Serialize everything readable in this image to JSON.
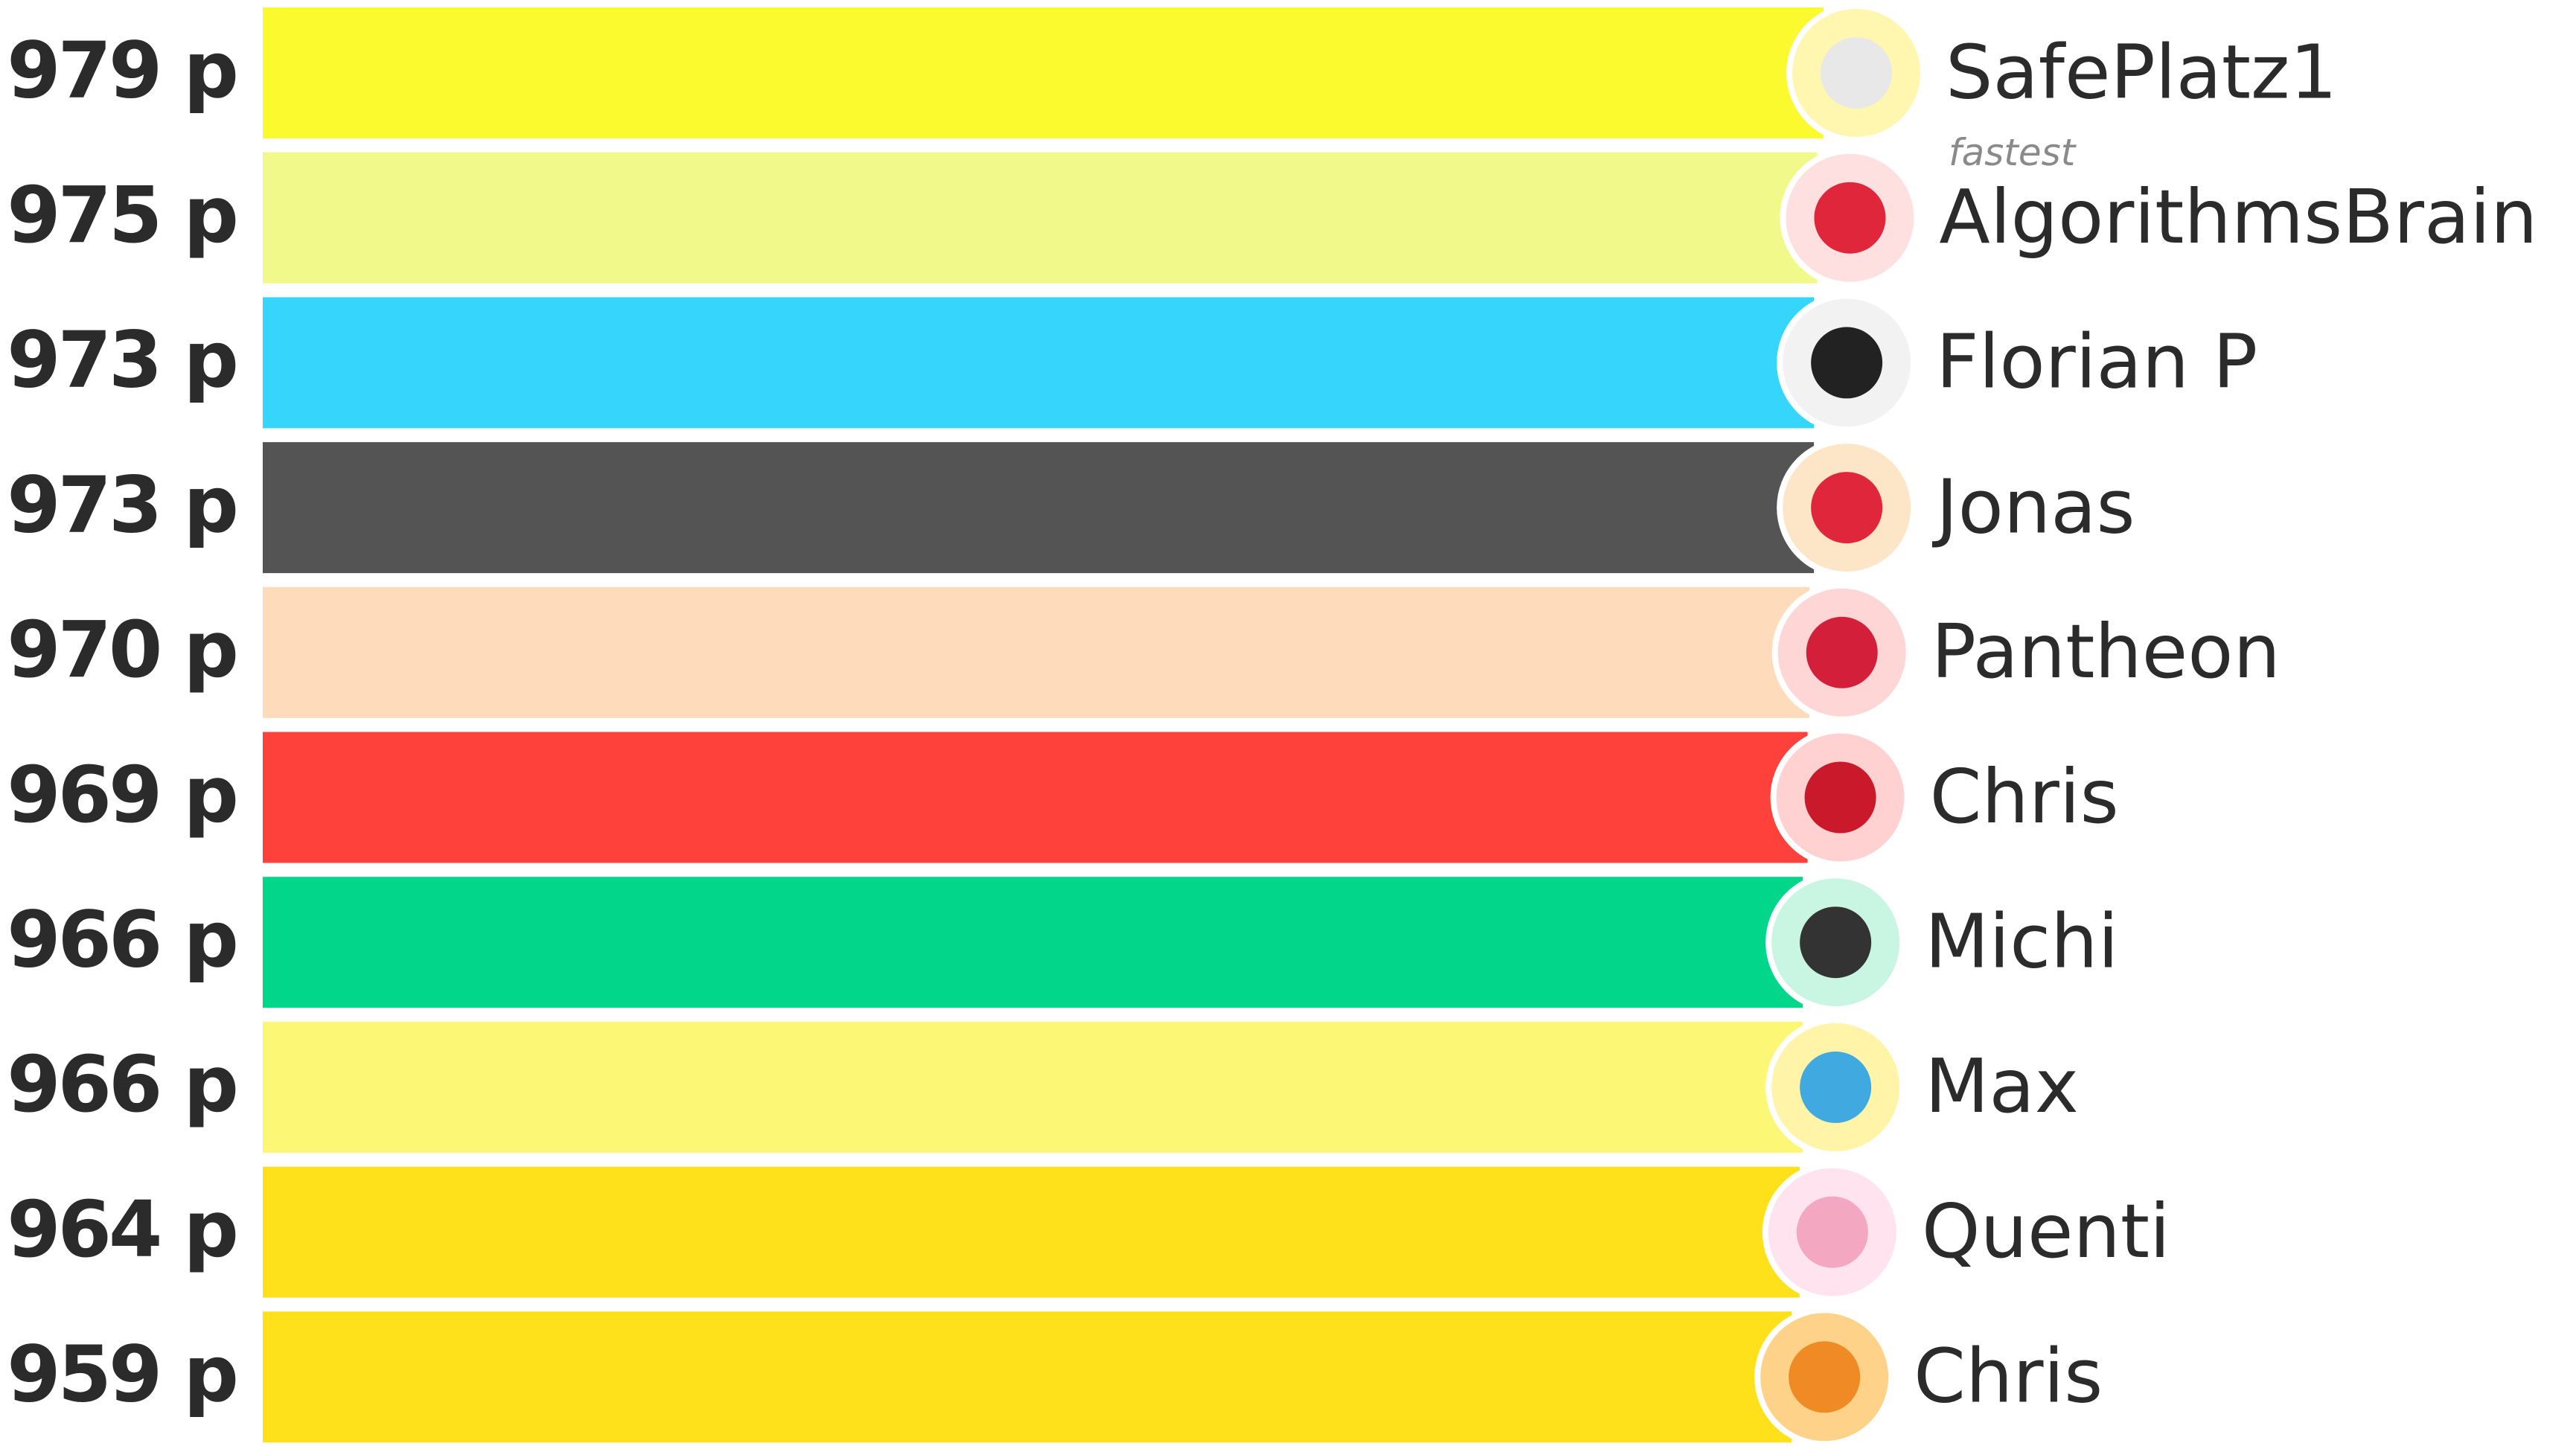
{
  "chart_data": {
    "type": "hbar",
    "categories": [
      "SafePlatz1",
      "AlgorithmsBrain",
      "Florian P",
      "Jonas",
      "Pantheon",
      "Chris",
      "Michi",
      "Max",
      "Quenti",
      "Chris"
    ],
    "values": [
      979,
      975,
      973,
      973,
      970,
      969,
      966,
      966,
      964,
      959
    ],
    "value_labels": [
      "979 p",
      "975 p",
      "973 p",
      "973 p",
      "970 p",
      "969 p",
      "966 p",
      "966 p",
      "964 p",
      "959 p"
    ],
    "colors": [
      "#fafa2e",
      "#f0f98a",
      "#36d6fc",
      "#545454",
      "#fedcbb",
      "#fe413b",
      "#02d68b",
      "#fcf775",
      "#fee11a",
      "#fee11a"
    ],
    "annotation": "fastest"
  }
}
